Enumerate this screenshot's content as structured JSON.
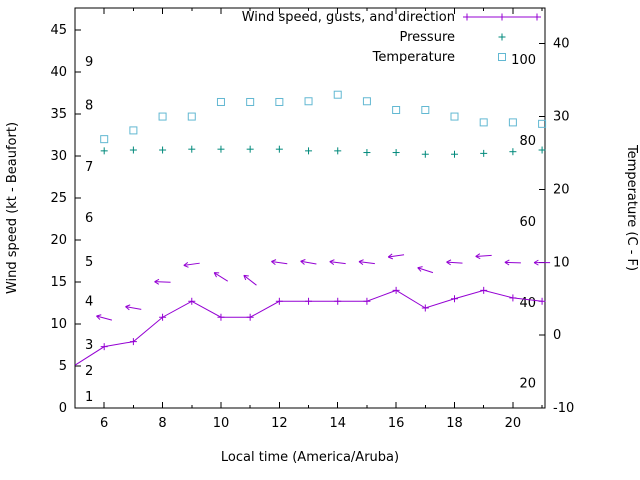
{
  "chart_data": {
    "type": "line",
    "title": "",
    "xlabel": "Local time (America/Aruba)",
    "ylabel_left": "Wind speed (kt - Beaufort)",
    "ylabel_right": "Temperature (C - F)",
    "xlim": [
      5,
      21.1
    ],
    "x_major_ticks": [
      6,
      8,
      10,
      12,
      14,
      16,
      18,
      20
    ],
    "x_minor_ticks": [
      7,
      9,
      11,
      13,
      15,
      17,
      19,
      21
    ],
    "ylim_left": [
      0,
      47.6
    ],
    "y_ticks_left": [
      0,
      5,
      10,
      15,
      20,
      25,
      30,
      35,
      40,
      45
    ],
    "ylim_right": [
      -10,
      44.9
    ],
    "y_ticks_right": [
      -10,
      0,
      10,
      20,
      30,
      40
    ],
    "grid": false,
    "legend": {
      "position": "top-right-inside",
      "entries": [
        {
          "label": "Wind speed, gusts, and direction",
          "series": "wind",
          "sample": "line-plus"
        },
        {
          "label": "Pressure",
          "series": "pressure",
          "sample": "plus"
        },
        {
          "label": "Temperature",
          "series": "temperature",
          "sample": "square"
        }
      ]
    },
    "colors": {
      "wind": "#9400d3",
      "pressure": "#00897b",
      "temperature": "#62b8d2",
      "axis": "#000000",
      "background": "#ffffff"
    },
    "beaufort_scale_labels": [
      {
        "n": "1",
        "kt": 1.3
      },
      {
        "n": "2",
        "kt": 4.4
      },
      {
        "n": "3",
        "kt": 7.5
      },
      {
        "n": "4",
        "kt": 12.7
      },
      {
        "n": "5",
        "kt": 17.4
      },
      {
        "n": "6",
        "kt": 22.6
      },
      {
        "n": "7",
        "kt": 28.7
      },
      {
        "n": "8",
        "kt": 36.0
      },
      {
        "n": "9",
        "kt": 41.2
      }
    ],
    "fahrenheit_scale_labels": [
      20,
      40,
      60,
      80,
      100
    ],
    "series": {
      "wind_speed": {
        "x": [
          5,
          6,
          7,
          8,
          9,
          10,
          11,
          12,
          13,
          14,
          15,
          16,
          17,
          18,
          19,
          20,
          21
        ],
        "values_kt": [
          5.1,
          7.3,
          7.9,
          10.8,
          12.7,
          10.8,
          10.8,
          12.7,
          12.7,
          12.7,
          12.7,
          14.0,
          11.9,
          13.0,
          14.0,
          13.1,
          12.7
        ]
      },
      "wind_gusts": {
        "x": [
          6,
          7,
          8,
          9,
          10,
          11,
          12,
          13,
          14,
          15,
          16,
          17,
          18,
          19,
          20,
          21
        ],
        "values_kt": [
          10.7,
          11.9,
          15.0,
          17.1,
          15.6,
          15.2,
          17.3,
          17.3,
          17.3,
          17.3,
          18.1,
          16.4,
          17.3,
          18.1,
          17.3,
          17.3
        ],
        "arrow_dir_deg": [
          195,
          190,
          182,
          172,
          212,
          218,
          188,
          190,
          187,
          187,
          172,
          198,
          184,
          176,
          182,
          180
        ]
      },
      "pressure": {
        "x": [
          6,
          7,
          8,
          9,
          10,
          11,
          12,
          13,
          14,
          15,
          16,
          17,
          18,
          19,
          20,
          21
        ],
        "values_left_axis": [
          30.6,
          30.7,
          30.7,
          30.8,
          30.8,
          30.8,
          30.8,
          30.6,
          30.6,
          30.4,
          30.4,
          30.2,
          30.2,
          30.3,
          30.5,
          30.7
        ]
      },
      "temperature": {
        "x": [
          6,
          7,
          8,
          9,
          10,
          11,
          12,
          13,
          14,
          15,
          16,
          17,
          18,
          19,
          20,
          21
        ],
        "values_c": [
          26.9,
          28.1,
          30.0,
          30.0,
          32.0,
          32.0,
          32.0,
          32.1,
          33.0,
          32.1,
          30.9,
          30.9,
          30.0,
          29.2,
          29.2,
          29.0
        ]
      }
    }
  }
}
